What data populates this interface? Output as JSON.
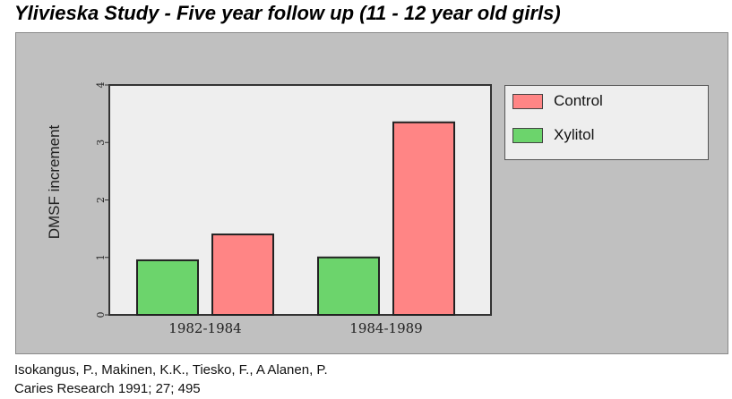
{
  "title": "Ylivieska Study - Five year follow up (11 - 12 year old girls)",
  "citation": {
    "line1": "Isokangus, P., Makinen, K.K., Tiesko, F., A Alanen, P.",
    "line2": "Caries Research 1991; 27; 495"
  },
  "chart_data": {
    "type": "bar",
    "title": "Ylivieska Study - Five year follow up (11 - 12 year old girls)",
    "xlabel": "",
    "ylabel": "DMSF increment",
    "ylim": [
      0,
      4
    ],
    "yticks": [
      "0",
      "1",
      "2",
      "3",
      "4"
    ],
    "categories": [
      "1982-1984",
      "1984-1989"
    ],
    "series": [
      {
        "name": "Xylitol",
        "color": "#6cd46c",
        "values": [
          0.95,
          1.0
        ]
      },
      {
        "name": "Control",
        "color": "#ff8585",
        "values": [
          1.4,
          3.35
        ]
      }
    ],
    "legend": [
      "Control",
      "Xylitol"
    ],
    "legend_position": "right",
    "grid": false
  }
}
